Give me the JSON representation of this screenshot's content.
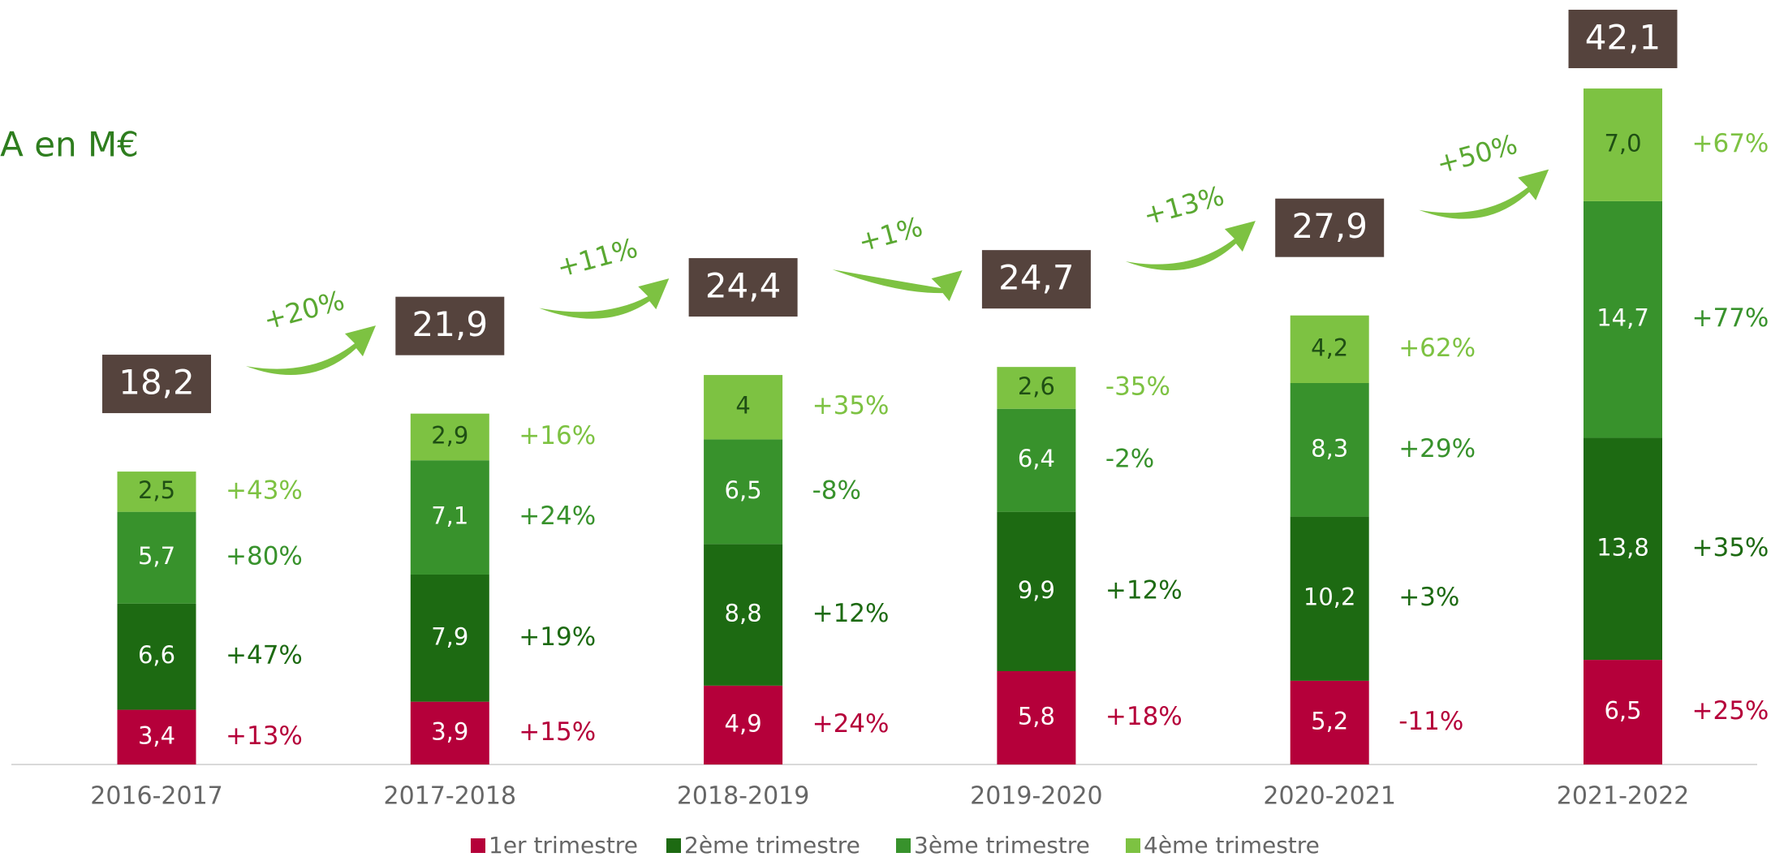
{
  "chart_data": {
    "type": "bar",
    "stacked": true,
    "title": "CA en M€",
    "categories": [
      "2016-2017",
      "2017-2018",
      "2018-2019",
      "2019-2020",
      "2020-2021",
      "2021-2022"
    ],
    "series": [
      {
        "name": "1er trimestre",
        "color": "#b5003a",
        "values": [
          3.4,
          3.9,
          4.9,
          5.8,
          5.2,
          6.5
        ],
        "value_labels": [
          "3,4",
          "3,9",
          "4,9",
          "5,8",
          "5,2",
          "6,5"
        ],
        "changes": [
          "+13%",
          "+15%",
          "+24%",
          "+18%",
          "-11%",
          "+25%"
        ]
      },
      {
        "name": "2ème trimestre",
        "color": "#1d6a12",
        "values": [
          6.6,
          7.9,
          8.8,
          9.9,
          10.2,
          13.8
        ],
        "value_labels": [
          "6,6",
          "7,9",
          "8,8",
          "9,9",
          "10,2",
          "13,8"
        ],
        "changes": [
          "+47%",
          "+19%",
          "+12%",
          "+12%",
          "+3%",
          "+35%"
        ]
      },
      {
        "name": "3ème trimestre",
        "color": "#38922c",
        "values": [
          5.7,
          7.1,
          6.5,
          6.4,
          8.3,
          14.7
        ],
        "value_labels": [
          "5,7",
          "7,1",
          "6,5",
          "6,4",
          "8,3",
          "14,7"
        ],
        "changes": [
          "+80%",
          "+24%",
          "-8%",
          "-2%",
          "+29%",
          "+77%"
        ]
      },
      {
        "name": "4ème trimestre",
        "color": "#7dc242",
        "values": [
          2.5,
          2.9,
          4,
          2.6,
          4.2,
          7.0
        ],
        "value_labels": [
          "2,5",
          "2,9",
          "4",
          "2,6",
          "4,2",
          "7,0"
        ],
        "changes": [
          "+43%",
          "+16%",
          "+35%",
          "-35%",
          "+62%",
          "+67%"
        ]
      }
    ],
    "totals": [
      18.2,
      21.9,
      24.4,
      24.7,
      27.9,
      42.1
    ],
    "total_labels": [
      "18,2",
      "21,9",
      "24,4",
      "24,7",
      "27,9",
      "42,1"
    ],
    "total_changes": [
      "+20%",
      "+11%",
      "+1%",
      "+13%",
      "+50%"
    ],
    "total_color": "#55433d",
    "ylim": [
      0,
      47.5
    ]
  }
}
